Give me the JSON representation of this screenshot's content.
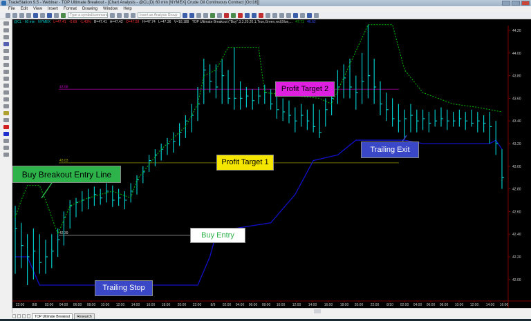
{
  "window": {
    "title": "TradeStation 9.5 - Webinar - TOP Ultimate Breakout - [Chart Analysis - @CL(D) 60 min [NYMEX] Crude Oil Continuous Contract [Oct16]]"
  },
  "menu": [
    "File",
    "Edit",
    "View",
    "Insert",
    "Format",
    "Drawing",
    "Window",
    "Help"
  ],
  "toolbar": {
    "symbol_placeholder": "Type a symbol/command",
    "analysis_placeholder": "Insert an Analysis Group"
  },
  "status_line": {
    "symbol": "@CL - 60 min",
    "exchange": "NYMEX",
    "last": "L=47.41",
    "change": "-0.69",
    "change_pct": "-1.43%",
    "bid": "B=47.41",
    "ask": "A=47.42",
    "open": "O=47.59",
    "high": "H=47.74",
    "low": "L=47.36",
    "volume": "V=18,188",
    "study": "TOP Ultimate Breakout (\"Buy\",3,3,20,20,1,True,Green,red,Blue,...",
    "value1": "47.71",
    "value2": "46.62"
  },
  "colors": {
    "bars": "#00c8c8",
    "entry_line": "#00c000",
    "trailing_stop": "#1010c8",
    "profit_target_2": "#800080",
    "profit_target_1": "#707000",
    "buy_entry": "#808080",
    "axis": "#800000"
  },
  "annotations": {
    "buy_breakout_entry_line": "Buy Breakout Entry Line",
    "profit_target_2": "Profit Target 2",
    "profit_target_1": "Profit Target 1",
    "buy_entry": "Buy Entry",
    "trailing_stop": "Trailing Stop",
    "trailing_exit": "Trailing Exit"
  },
  "chart_data": {
    "type": "bar",
    "price_ticks": [
      "44.20",
      "44.00",
      "43.80",
      "43.60",
      "43.40",
      "43.20",
      "43.00",
      "42.80",
      "42.60",
      "42.40",
      "42.20",
      "42.00"
    ],
    "ylim": [
      41.9,
      44.3
    ],
    "time_labels": [
      "22:00",
      "8/8",
      "02:00",
      "04:00",
      "06:00",
      "08:00",
      "10:00",
      "12:00",
      "14:00",
      "16:00",
      "18:00",
      "20:00",
      "22:00",
      "8/9",
      "02:00",
      "04:00",
      "06:00",
      "08:00",
      "10:00",
      "12:00",
      "14:00",
      "16:00",
      "18:00",
      "20:00",
      "22:00",
      "8/10",
      "02:00",
      "04:00",
      "06:00",
      "08:00",
      "10:00",
      "12:00",
      "14:00",
      "16:00"
    ],
    "bars_hlc": [
      [
        42.65,
        42.05,
        42.45
      ],
      [
        42.5,
        42.1,
        42.3
      ],
      [
        42.4,
        41.95,
        42.2
      ],
      [
        42.45,
        42.0,
        42.25
      ],
      [
        42.4,
        42.05,
        42.15
      ],
      [
        42.35,
        42.05,
        42.2
      ],
      [
        42.4,
        42.1,
        42.25
      ],
      [
        42.45,
        42.2,
        42.35
      ],
      [
        42.6,
        42.3,
        42.55
      ],
      [
        42.7,
        42.45,
        42.65
      ],
      [
        42.72,
        42.55,
        42.68
      ],
      [
        42.78,
        42.6,
        42.7
      ],
      [
        42.8,
        42.62,
        42.72
      ],
      [
        42.82,
        42.65,
        42.75
      ],
      [
        42.8,
        42.66,
        42.72
      ],
      [
        42.85,
        42.68,
        42.78
      ],
      [
        42.83,
        42.64,
        42.7
      ],
      [
        42.8,
        42.65,
        42.72
      ],
      [
        42.78,
        42.62,
        42.7
      ],
      [
        42.85,
        42.68,
        42.78
      ],
      [
        42.92,
        42.75,
        42.88
      ],
      [
        43.0,
        42.85,
        42.95
      ],
      [
        43.1,
        42.95,
        43.05
      ],
      [
        43.15,
        43.0,
        43.1
      ],
      [
        43.2,
        43.05,
        43.15
      ],
      [
        43.25,
        43.1,
        43.2
      ],
      [
        43.3,
        43.12,
        43.22
      ],
      [
        43.38,
        43.18,
        43.3
      ],
      [
        43.45,
        43.25,
        43.4
      ],
      [
        43.55,
        43.3,
        43.45
      ],
      [
        43.7,
        43.4,
        43.55
      ],
      [
        43.95,
        43.55,
        43.85
      ],
      [
        43.9,
        43.65,
        43.75
      ],
      [
        43.9,
        43.6,
        43.7
      ],
      [
        43.95,
        43.55,
        43.8
      ],
      [
        43.85,
        43.55,
        43.6
      ],
      [
        44.05,
        43.5,
        43.6
      ],
      [
        43.75,
        43.5,
        43.6
      ],
      [
        43.7,
        43.52,
        43.62
      ],
      [
        43.68,
        43.5,
        43.58
      ],
      [
        43.7,
        43.55,
        43.62
      ],
      [
        43.72,
        43.55,
        43.65
      ],
      [
        43.68,
        43.5,
        43.55
      ],
      [
        43.62,
        43.42,
        43.5
      ],
      [
        43.6,
        43.4,
        43.48
      ],
      [
        43.58,
        43.38,
        43.45
      ],
      [
        43.52,
        43.3,
        43.4
      ],
      [
        43.55,
        43.35,
        43.45
      ],
      [
        43.5,
        43.32,
        43.4
      ],
      [
        43.55,
        43.3,
        43.35
      ],
      [
        43.5,
        43.25,
        43.3
      ],
      [
        43.6,
        43.35,
        43.5
      ],
      [
        43.72,
        43.45,
        43.6
      ],
      [
        43.85,
        43.55,
        43.7
      ],
      [
        43.9,
        43.6,
        43.78
      ],
      [
        43.95,
        43.6,
        43.7
      ],
      [
        43.8,
        43.5,
        43.65
      ],
      [
        44.0,
        43.55,
        43.75
      ],
      [
        44.25,
        43.6,
        43.8
      ],
      [
        43.95,
        43.55,
        43.7
      ],
      [
        43.75,
        43.45,
        43.55
      ],
      [
        43.65,
        43.4,
        43.5
      ],
      [
        43.6,
        43.35,
        43.42
      ],
      [
        43.55,
        43.3,
        43.4
      ],
      [
        43.5,
        43.25,
        43.42
      ],
      [
        43.55,
        43.3,
        43.45
      ],
      [
        43.5,
        43.3,
        43.4
      ],
      [
        43.5,
        43.32,
        43.42
      ],
      [
        43.48,
        43.3,
        43.38
      ],
      [
        43.5,
        43.35,
        43.4
      ],
      [
        43.52,
        43.35,
        43.42
      ],
      [
        43.5,
        43.32,
        43.4
      ],
      [
        43.48,
        43.35,
        43.4
      ],
      [
        43.5,
        43.35,
        43.42
      ],
      [
        43.48,
        43.32,
        43.4
      ],
      [
        43.5,
        43.35,
        43.38
      ],
      [
        43.48,
        43.3,
        43.4
      ],
      [
        43.45,
        43.3,
        43.38
      ],
      [
        43.48,
        43.2,
        43.35
      ],
      [
        43.4,
        43.1,
        43.2
      ],
      [
        43.15,
        42.8,
        42.9
      ]
    ],
    "entry_line_points": [
      [
        0,
        42.55
      ],
      [
        1,
        42.7
      ],
      [
        2,
        42.83
      ],
      [
        4,
        42.83
      ],
      [
        5,
        42.7
      ],
      [
        7,
        42.4
      ],
      [
        9,
        42.65
      ],
      [
        12,
        42.72
      ],
      [
        16,
        42.78
      ],
      [
        19,
        42.72
      ],
      [
        20,
        42.88
      ],
      [
        24,
        43.15
      ],
      [
        28,
        43.35
      ],
      [
        30,
        43.55
      ],
      [
        31,
        43.8
      ],
      [
        33,
        43.85
      ],
      [
        35,
        44.05
      ],
      [
        40,
        44.05
      ],
      [
        41,
        43.65
      ],
      [
        50,
        43.6
      ],
      [
        52,
        43.55
      ],
      [
        55,
        43.9
      ],
      [
        58,
        44.25
      ],
      [
        62,
        44.25
      ],
      [
        64,
        43.85
      ],
      [
        67,
        43.65
      ],
      [
        72,
        43.55
      ],
      [
        76,
        43.52
      ],
      [
        80,
        43.48
      ]
    ],
    "trailing_stop_points": [
      [
        0,
        42.2
      ],
      [
        2,
        42.2
      ],
      [
        4,
        41.95
      ],
      [
        30,
        41.95
      ],
      [
        32,
        42.2
      ],
      [
        33,
        42.4
      ],
      [
        36,
        42.45
      ],
      [
        42,
        42.5
      ],
      [
        46,
        42.75
      ],
      [
        49,
        43.05
      ],
      [
        53,
        43.1
      ],
      [
        56,
        43.23
      ],
      [
        64,
        43.23
      ],
      [
        67,
        43.2
      ],
      [
        78,
        43.2
      ],
      [
        79,
        43.23
      ],
      [
        80,
        43.15
      ]
    ],
    "levels": {
      "profit_target_2": "43.68",
      "profit_target_1": "43.03",
      "buy_entry": "42.39"
    }
  },
  "tabs": [
    "TOP Ultimate Breakout",
    "Research"
  ]
}
